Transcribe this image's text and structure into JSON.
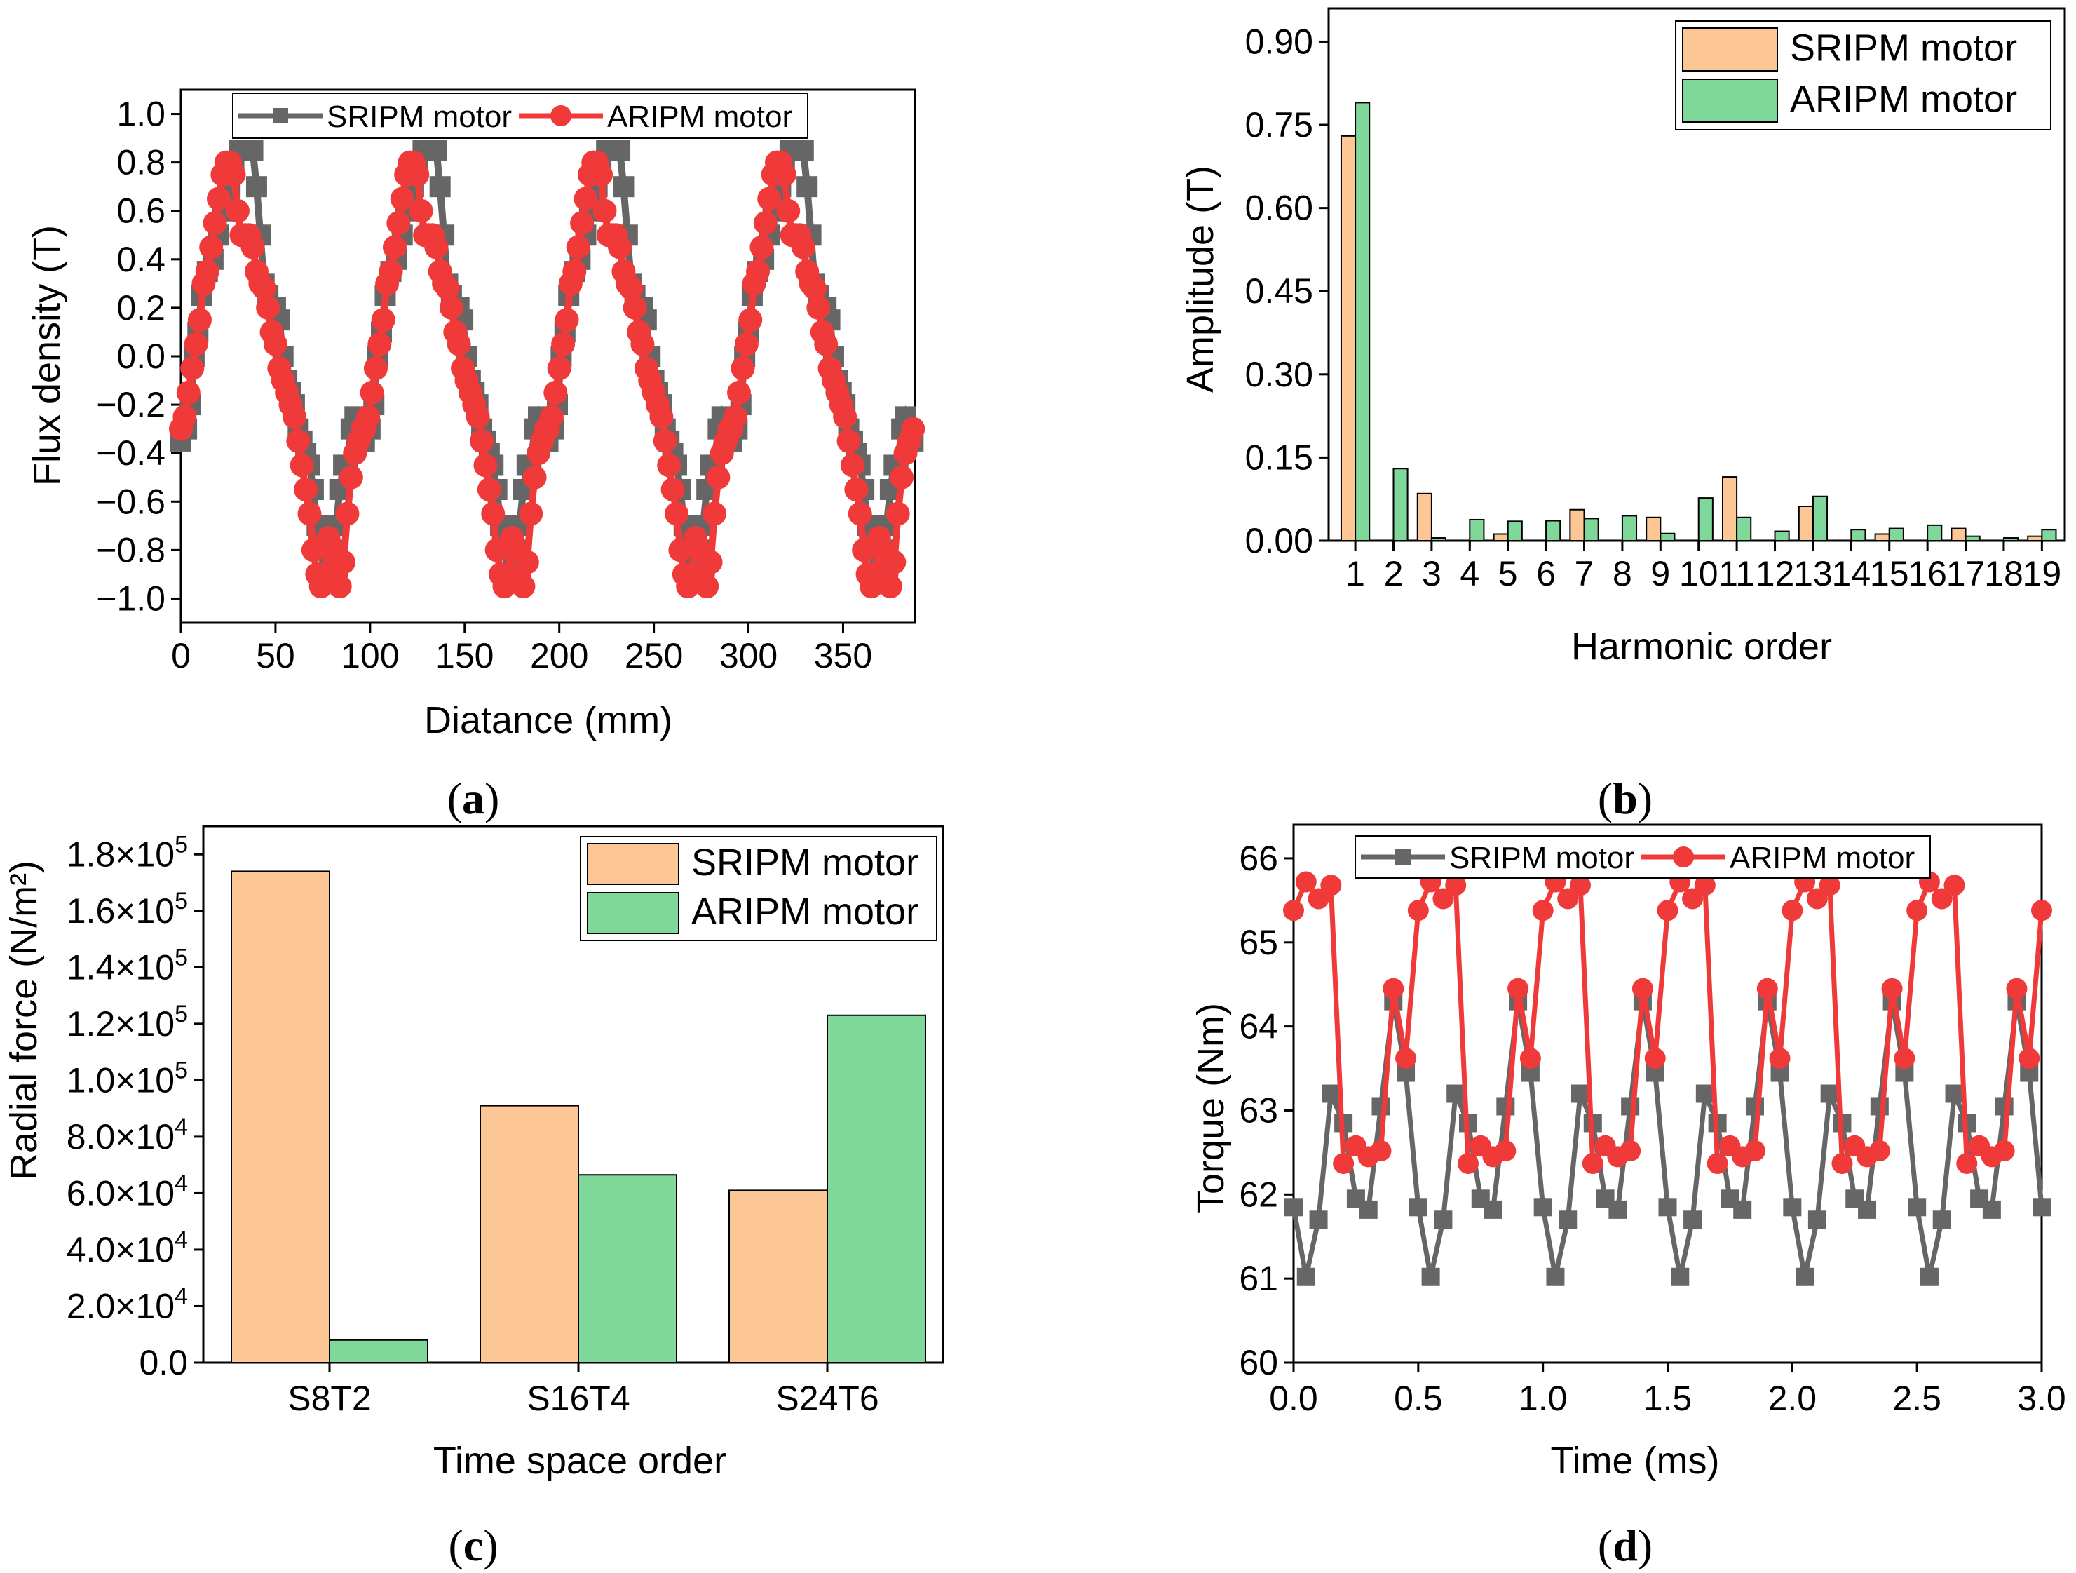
{
  "colors": {
    "sripm_line": "#666666",
    "aripm_line": "#f03a3a",
    "sripm_bar": "#fdc795",
    "aripm_bar": "#7fd79a"
  },
  "chart_data": [
    {
      "id": "a",
      "panel_label": "a",
      "type": "line",
      "xlabel": "Diatance (mm)",
      "ylabel": "Flux density (T)",
      "xlim": [
        0,
        388
      ],
      "ylim": [
        -1.1,
        1.1
      ],
      "xticks": [
        "0",
        "50",
        "100",
        "150",
        "200",
        "250",
        "300",
        "350"
      ],
      "yticks": [
        "1.0",
        "0.8",
        "0.6",
        "0.4",
        "0.2",
        "0.0",
        "−0.2",
        "−0.4",
        "−0.6",
        "−0.8",
        "−1.0"
      ],
      "legend_position": "top",
      "series": [
        {
          "name": "SRIPM motor",
          "color": "#666666",
          "marker": "square",
          "x": [
            0,
            3,
            5,
            7,
            9,
            11,
            14,
            17,
            20,
            22,
            24,
            26,
            28,
            31,
            34,
            36,
            38,
            40,
            42,
            44,
            46,
            48,
            50,
            52,
            54,
            56,
            58,
            60,
            62,
            64,
            66,
            68,
            70,
            72,
            74,
            76,
            78,
            80,
            82,
            84,
            86,
            88,
            90,
            92,
            94,
            96
          ],
          "y": [
            -0.35,
            -0.3,
            -0.2,
            0.0,
            0.1,
            0.25,
            0.35,
            0.4,
            0.5,
            0.6,
            0.65,
            0.7,
            0.8,
            0.85,
            0.85,
            0.85,
            0.85,
            0.7,
            0.5,
            0.3,
            0.25,
            0.2,
            0.2,
            0.15,
            0.0,
            -0.1,
            -0.15,
            -0.2,
            -0.3,
            -0.35,
            -0.4,
            -0.45,
            -0.55,
            -0.7,
            -0.8,
            -0.9,
            -0.9,
            -0.8,
            -0.7,
            -0.55,
            -0.45,
            -0.45,
            -0.3,
            -0.25,
            -0.3,
            -0.35
          ]
        },
        {
          "name": "ARIPM motor",
          "color": "#f03a3a",
          "marker": "circle",
          "x": [
            0,
            2,
            4,
            6,
            8,
            10,
            12,
            14,
            16,
            18,
            20,
            22,
            24,
            26,
            28,
            30,
            32,
            34,
            36,
            38,
            40,
            42,
            44,
            46,
            48,
            50,
            52,
            54,
            56,
            58,
            60,
            62,
            64,
            66,
            68,
            70,
            72,
            74,
            76,
            78,
            80,
            82,
            84,
            86,
            88,
            90,
            92,
            94,
            96
          ],
          "y": [
            -0.3,
            -0.25,
            -0.15,
            -0.05,
            0.05,
            0.15,
            0.3,
            0.35,
            0.45,
            0.55,
            0.65,
            0.75,
            0.8,
            0.8,
            0.75,
            0.6,
            0.5,
            0.5,
            0.5,
            0.45,
            0.35,
            0.3,
            0.28,
            0.2,
            0.1,
            0.05,
            -0.05,
            -0.1,
            -0.15,
            -0.2,
            -0.25,
            -0.35,
            -0.45,
            -0.55,
            -0.65,
            -0.8,
            -0.9,
            -0.95,
            -0.9,
            -0.75,
            -0.8,
            -0.9,
            -0.95,
            -0.85,
            -0.65,
            -0.5,
            -0.4,
            -0.35,
            -0.3
          ]
        }
      ]
    },
    {
      "id": "b",
      "panel_label": "b",
      "type": "bar",
      "xlabel": "Harmonic order",
      "ylabel": "Amplitude (T)",
      "ylim": [
        0,
        0.96
      ],
      "yticks": [
        "0.00",
        "0.15",
        "0.30",
        "0.45",
        "0.60",
        "0.75",
        "0.90"
      ],
      "categories": [
        "1",
        "2",
        "3",
        "4",
        "5",
        "6",
        "7",
        "8",
        "9",
        "10",
        "11",
        "12",
        "13",
        "14",
        "15",
        "16",
        "17",
        "18",
        "19"
      ],
      "legend_position": "top-right",
      "series": [
        {
          "name": "SRIPM motor",
          "color": "#fdc795",
          "values": [
            0.73,
            0.0,
            0.085,
            0.0,
            0.012,
            0.0,
            0.056,
            0.0,
            0.042,
            0.0,
            0.115,
            0.0,
            0.062,
            0.0,
            0.012,
            0.0,
            0.022,
            0.0,
            0.008
          ]
        },
        {
          "name": "ARIPM motor",
          "color": "#7fd79a",
          "values": [
            0.79,
            0.13,
            0.005,
            0.038,
            0.035,
            0.036,
            0.04,
            0.045,
            0.013,
            0.077,
            0.042,
            0.017,
            0.08,
            0.02,
            0.022,
            0.028,
            0.008,
            0.005,
            0.02
          ]
        }
      ]
    },
    {
      "id": "c",
      "panel_label": "c",
      "type": "bar",
      "xlabel": "Time space order",
      "ylabel": "Radial force (N/m²)",
      "ylim": [
        0,
        190000
      ],
      "yticks": [
        {
          "mant": "0.0",
          "exp": ""
        },
        {
          "mant": "2.0×10",
          "exp": "4"
        },
        {
          "mant": "4.0×10",
          "exp": "4"
        },
        {
          "mant": "6.0×10",
          "exp": "4"
        },
        {
          "mant": "8.0×10",
          "exp": "4"
        },
        {
          "mant": "1.0×10",
          "exp": "5"
        },
        {
          "mant": "1.2×10",
          "exp": "5"
        },
        {
          "mant": "1.4×10",
          "exp": "5"
        },
        {
          "mant": "1.6×10",
          "exp": "5"
        },
        {
          "mant": "1.8×10",
          "exp": "5"
        }
      ],
      "categories": [
        "S8T2",
        "S16T4",
        "S24T6"
      ],
      "legend_position": "top-right",
      "series": [
        {
          "name": "SRIPM motor",
          "color": "#fdc795",
          "values": [
            174000,
            91000,
            61000
          ]
        },
        {
          "name": "ARIPM motor",
          "color": "#7fd79a",
          "values": [
            8000,
            66500,
            123000
          ]
        }
      ]
    },
    {
      "id": "d",
      "panel_label": "d",
      "type": "line",
      "xlabel": "Time (ms)",
      "ylabel": "Torque (Nm)",
      "xlim": [
        0,
        3.0
      ],
      "ylim": [
        60,
        66.4
      ],
      "xticks": [
        "0.0",
        "0.5",
        "1.0",
        "1.5",
        "2.0",
        "2.5",
        "3.0"
      ],
      "yticks": [
        "60",
        "61",
        "62",
        "63",
        "64",
        "65",
        "66"
      ],
      "legend_position": "top",
      "series": [
        {
          "name": "SRIPM motor",
          "color": "#666666",
          "marker": "square",
          "x": [
            0.0,
            0.05,
            0.1,
            0.15,
            0.2,
            0.25,
            0.3,
            0.35,
            0.4,
            0.45,
            0.5,
            0.55,
            0.6,
            0.65,
            0.7,
            0.75,
            0.8,
            0.85,
            0.9,
            0.95,
            1.0,
            1.05,
            1.1,
            1.15,
            1.2,
            1.25,
            1.3,
            1.35,
            1.4,
            1.45,
            1.5,
            1.55,
            1.6,
            1.65,
            1.7,
            1.75,
            1.8,
            1.85,
            1.9,
            1.95,
            2.0,
            2.05,
            2.1,
            2.15,
            2.2,
            2.25,
            2.3,
            2.35,
            2.4,
            2.45,
            2.5,
            2.55,
            2.6,
            2.65,
            2.7,
            2.75,
            2.8,
            2.85,
            2.9,
            2.95,
            3.0
          ],
          "y": [
            61.85,
            61.02,
            61.7,
            63.2,
            62.85,
            61.95,
            61.82,
            63.05,
            64.3,
            63.45,
            61.85,
            61.02,
            61.7,
            63.2,
            62.85,
            61.95,
            61.82,
            63.05,
            64.3,
            63.45,
            61.85,
            61.02,
            61.7,
            63.2,
            62.85,
            61.95,
            61.82,
            63.05,
            64.3,
            63.45,
            61.85,
            61.02,
            61.7,
            63.2,
            62.85,
            61.95,
            61.82,
            63.05,
            64.3,
            63.45,
            61.85,
            61.02,
            61.7,
            63.2,
            62.85,
            61.95,
            61.82,
            63.05,
            64.3,
            63.45,
            61.85,
            61.02,
            61.7,
            63.2,
            62.85,
            61.95,
            61.82,
            63.05,
            64.3,
            63.45,
            61.85
          ]
        },
        {
          "name": "ARIPM motor",
          "color": "#f03a3a",
          "marker": "circle",
          "x": [
            0.0,
            0.05,
            0.1,
            0.15,
            0.2,
            0.25,
            0.3,
            0.35,
            0.4,
            0.45,
            0.5,
            0.55,
            0.6,
            0.65,
            0.7,
            0.75,
            0.8,
            0.85,
            0.9,
            0.95,
            1.0,
            1.05,
            1.1,
            1.15,
            1.2,
            1.25,
            1.3,
            1.35,
            1.4,
            1.45,
            1.5,
            1.55,
            1.6,
            1.65,
            1.7,
            1.75,
            1.8,
            1.85,
            1.9,
            1.95,
            2.0,
            2.05,
            2.1,
            2.15,
            2.2,
            2.25,
            2.3,
            2.35,
            2.4,
            2.45,
            2.5,
            2.55,
            2.6,
            2.65,
            2.7,
            2.75,
            2.8,
            2.85,
            2.9,
            2.95,
            3.0
          ],
          "y": [
            65.38,
            65.72,
            65.52,
            65.68,
            62.37,
            62.58,
            62.45,
            62.52,
            64.45,
            63.62,
            65.38,
            65.72,
            65.52,
            65.68,
            62.37,
            62.58,
            62.45,
            62.52,
            64.45,
            63.62,
            65.38,
            65.72,
            65.52,
            65.68,
            62.37,
            62.58,
            62.45,
            62.52,
            64.45,
            63.62,
            65.38,
            65.72,
            65.52,
            65.68,
            62.37,
            62.58,
            62.45,
            62.52,
            64.45,
            63.62,
            65.38,
            65.72,
            65.52,
            65.68,
            62.37,
            62.58,
            62.45,
            62.52,
            64.45,
            63.62,
            65.38,
            65.72,
            65.52,
            65.68,
            62.37,
            62.58,
            62.45,
            62.52,
            64.45,
            63.62,
            65.38
          ]
        }
      ]
    }
  ]
}
